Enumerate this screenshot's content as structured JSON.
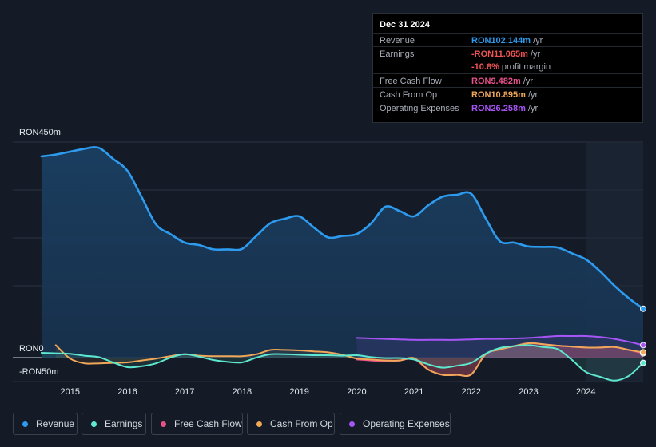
{
  "tooltip": {
    "date": "Dec 31 2024",
    "rows": [
      {
        "label": "Revenue",
        "value": "RON102.144m",
        "unit": "/yr",
        "color": "#2d9cf0"
      },
      {
        "label": "Earnings",
        "value": "-RON11.065m",
        "unit": "/yr",
        "color": "#f05454"
      },
      {
        "label": "",
        "value": "-10.8%",
        "unit": "profit margin",
        "color": "#f05454"
      },
      {
        "label": "Free Cash Flow",
        "value": "RON9.482m",
        "unit": "/yr",
        "color": "#e8508a"
      },
      {
        "label": "Cash From Op",
        "value": "RON10.895m",
        "unit": "/yr",
        "color": "#f0a858"
      },
      {
        "label": "Operating Expenses",
        "value": "RON26.258m",
        "unit": "/yr",
        "color": "#a855f7"
      }
    ]
  },
  "axis": {
    "top_label": "RON450m",
    "zero_label": "RON0",
    "neg_label": "-RON50m"
  },
  "legend": [
    {
      "label": "Revenue",
      "color": "#2d9cf0"
    },
    {
      "label": "Earnings",
      "color": "#5ee8d0"
    },
    {
      "label": "Free Cash Flow",
      "color": "#e8508a"
    },
    {
      "label": "Cash From Op",
      "color": "#f0a858"
    },
    {
      "label": "Operating Expenses",
      "color": "#a855f7"
    }
  ],
  "chart_data": {
    "type": "line",
    "title": "",
    "xlabel": "",
    "ylabel": "",
    "ylim": [
      -50,
      450
    ],
    "x_ticks": [
      "2015",
      "2016",
      "2017",
      "2018",
      "2019",
      "2020",
      "2021",
      "2022",
      "2023",
      "2024"
    ],
    "series": [
      {
        "name": "Revenue",
        "color": "#2d9cf0",
        "x": [
          2014.5,
          2014.75,
          2015.0,
          2015.25,
          2015.5,
          2015.75,
          2016.0,
          2016.25,
          2016.5,
          2016.75,
          2017.0,
          2017.25,
          2017.5,
          2017.75,
          2018.0,
          2018.25,
          2018.5,
          2018.75,
          2019.0,
          2019.25,
          2019.5,
          2019.75,
          2020.0,
          2020.25,
          2020.5,
          2020.75,
          2021.0,
          2021.25,
          2021.5,
          2021.75,
          2022.0,
          2022.25,
          2022.5,
          2022.75,
          2023.0,
          2023.25,
          2023.5,
          2023.75,
          2024.0,
          2024.25,
          2024.5,
          2024.75,
          2025.0
        ],
        "y": [
          420,
          424,
          430,
          436,
          438,
          415,
          390,
          335,
          278,
          258,
          240,
          235,
          226,
          226,
          227,
          254,
          281,
          290,
          295,
          272,
          251,
          254,
          258,
          280,
          315,
          306,
          295,
          318,
          336,
          340,
          342,
          291,
          243,
          240,
          232,
          231,
          230,
          218,
          205,
          180,
          150,
          124,
          102
        ]
      },
      {
        "name": "Earnings",
        "color": "#5ee8d0",
        "x": [
          2014.5,
          2014.75,
          2015.0,
          2015.25,
          2015.5,
          2015.75,
          2016.0,
          2016.25,
          2016.5,
          2016.75,
          2017.0,
          2017.25,
          2017.5,
          2017.75,
          2018.0,
          2018.25,
          2018.5,
          2018.75,
          2019.0,
          2019.25,
          2019.5,
          2019.75,
          2020.0,
          2020.25,
          2020.5,
          2020.75,
          2021.0,
          2021.25,
          2021.5,
          2021.75,
          2022.0,
          2022.25,
          2022.5,
          2022.75,
          2023.0,
          2023.25,
          2023.5,
          2023.75,
          2024.0,
          2024.25,
          2024.5,
          2024.75,
          2025.0
        ],
        "y": [
          10,
          9,
          8,
          4,
          1,
          -10,
          -20,
          -18,
          -12,
          0,
          7,
          2,
          -5,
          -9,
          -10,
          0,
          7,
          7,
          6,
          5,
          5,
          4,
          5,
          1,
          -1,
          -1,
          -4,
          -14,
          -21,
          -17,
          -11,
          8,
          20,
          24,
          26,
          22,
          18,
          -4,
          -30,
          -40,
          -48,
          -38,
          -11
        ]
      },
      {
        "name": "Free Cash Flow",
        "color": "#e8508a",
        "x": [
          2020.0,
          2020.25,
          2020.5,
          2020.75,
          2021.0,
          2021.25,
          2021.5,
          2021.75,
          2022.0,
          2022.25,
          2022.5,
          2022.75,
          2023.0,
          2023.25,
          2023.5,
          2023.75,
          2024.0,
          2024.25,
          2024.5,
          2024.75,
          2025.0
        ],
        "y": [
          -4,
          -6,
          -8,
          -6,
          -3,
          -25,
          -36,
          -36,
          -35,
          7,
          17,
          24,
          30,
          28,
          25,
          23,
          21,
          21,
          22,
          16,
          9
        ]
      },
      {
        "name": "Cash From Op",
        "color": "#f0a858",
        "x": [
          2014.5,
          2014.75,
          2015.0,
          2015.25,
          2015.5,
          2015.75,
          2016.0,
          2016.25,
          2016.5,
          2016.75,
          2017.0,
          2017.25,
          2017.5,
          2017.75,
          2018.0,
          2018.25,
          2018.5,
          2018.75,
          2019.0,
          2019.25,
          2019.5,
          2019.75,
          2020.0,
          2020.25,
          2020.5,
          2020.75,
          2021.0,
          2021.25,
          2021.5,
          2021.75,
          2022.0,
          2022.25,
          2022.5,
          2022.75,
          2023.0,
          2023.25,
          2023.5,
          2023.75,
          2024.0,
          2024.25,
          2024.5,
          2024.75,
          2025.0
        ],
        "y": [
          null,
          26,
          -2,
          -12,
          -12,
          -11,
          -10,
          -6,
          -2,
          3,
          7,
          4,
          3,
          3,
          3,
          7,
          16,
          16,
          15,
          13,
          11,
          6,
          -2,
          -4,
          -6,
          -6,
          -1,
          -25,
          -36,
          -36,
          -35,
          7,
          17,
          24,
          30,
          28,
          25,
          23,
          21,
          21,
          22,
          16,
          11
        ]
      },
      {
        "name": "Operating Expenses",
        "color": "#a855f7",
        "x": [
          2020.0,
          2020.25,
          2020.5,
          2020.75,
          2021.0,
          2021.25,
          2021.5,
          2021.75,
          2022.0,
          2022.25,
          2022.5,
          2022.75,
          2023.0,
          2023.25,
          2023.5,
          2023.75,
          2024.0,
          2024.25,
          2024.5,
          2024.75,
          2025.0
        ],
        "y": [
          41,
          40,
          39,
          38,
          37,
          37,
          37,
          37,
          38,
          39,
          39,
          40,
          41,
          43,
          45,
          45,
          45,
          43,
          39,
          33,
          26
        ]
      }
    ]
  }
}
